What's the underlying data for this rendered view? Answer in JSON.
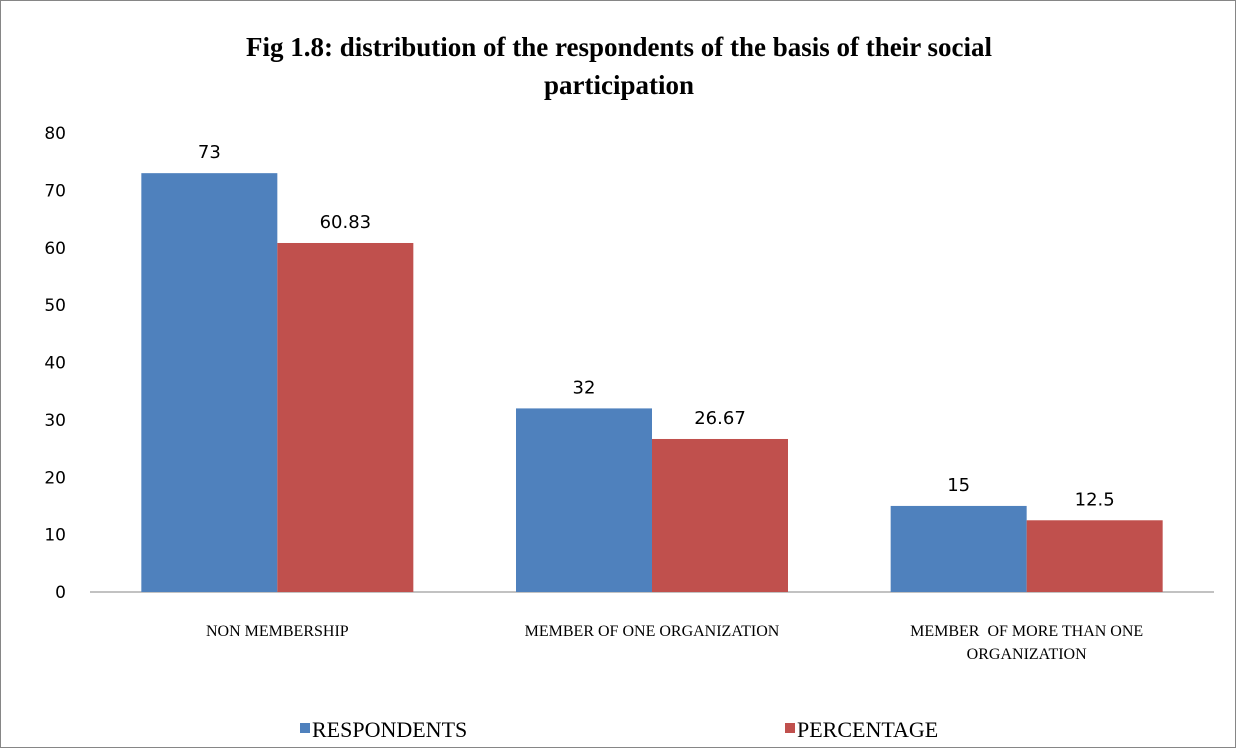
{
  "chart_data": {
    "type": "bar",
    "title": "Fig 1.8: distribution of the respondents of the basis of their social participation",
    "title_lines": [
      "Fig 1.8: distribution of the respondents of the basis of their social",
      "participation"
    ],
    "categories": [
      "NON MEMBERSHIP",
      "MEMBER OF ONE ORGANIZATION",
      "MEMBER  OF MORE THAN ONE ORGANIZATION"
    ],
    "category_lines": [
      [
        "NON MEMBERSHIP"
      ],
      [
        "MEMBER OF ONE ORGANIZATION"
      ],
      [
        "MEMBER  OF MORE THAN ONE",
        "ORGANIZATION"
      ]
    ],
    "series": [
      {
        "name": "RESPONDENTS",
        "values": [
          73,
          32,
          15
        ],
        "labels": [
          "73",
          "32",
          "15"
        ],
        "color": "#4f81bd"
      },
      {
        "name": "PERCENTAGE",
        "values": [
          60.83,
          26.67,
          12.5
        ],
        "labels": [
          "60.83",
          "26.67",
          "12.5"
        ],
        "color": "#c0504d"
      }
    ],
    "ylim": [
      0,
      80
    ],
    "yticks": [
      0,
      10,
      20,
      30,
      40,
      50,
      60,
      70,
      80
    ],
    "grid": false,
    "legend_position": "bottom"
  }
}
